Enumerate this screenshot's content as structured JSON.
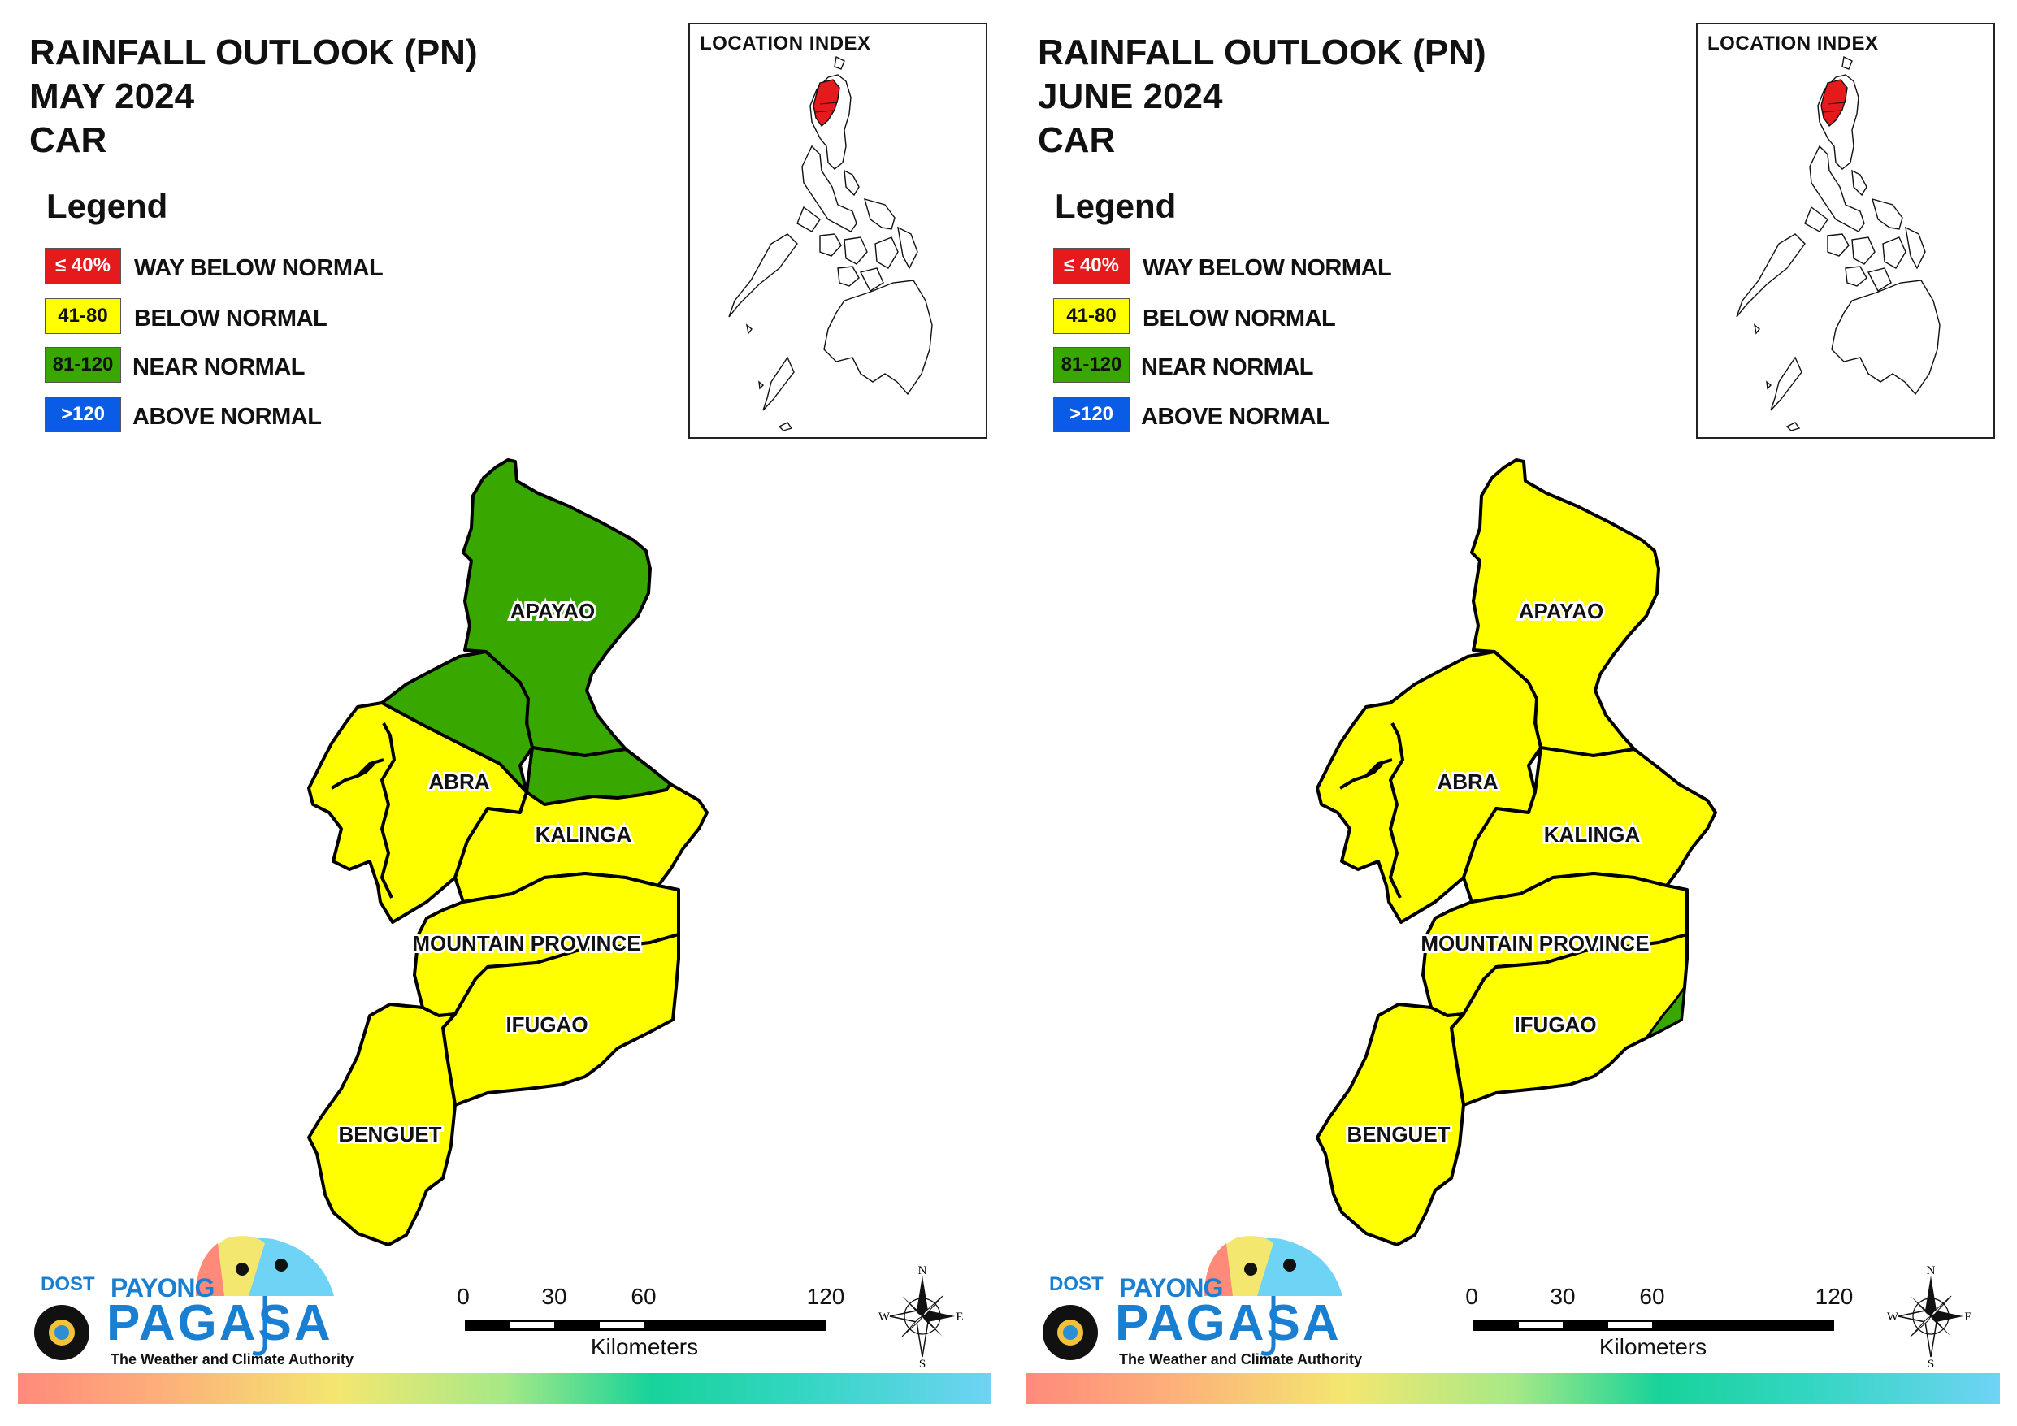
{
  "legend": {
    "title": "Legend",
    "items": [
      {
        "range": "≤ 40%",
        "label": "WAY BELOW NORMAL",
        "color": "#e41a1c",
        "text_color": "#ffffff"
      },
      {
        "range": "41-80",
        "label": "BELOW NORMAL",
        "color": "#ffff00",
        "text_color": "#111111"
      },
      {
        "range": "81-120",
        "label": "NEAR NORMAL",
        "color": "#38a800",
        "text_color": "#111111"
      },
      {
        "range": ">120",
        "label": "ABOVE NORMAL",
        "color": "#0a5ce6",
        "text_color": "#ffffff"
      }
    ]
  },
  "inset": {
    "label": "LOCATION INDEX",
    "highlight_color": "#e41a1c",
    "highlight_region": "CAR"
  },
  "provinces": [
    "APAYAO",
    "ABRA",
    "KALINGA",
    "MOUNTAIN PROVINCE",
    "IFUGAO",
    "BENGUET"
  ],
  "maps": [
    {
      "title_lines": [
        "RAINFALL OUTLOOK (PN)",
        "MAY 2024",
        "CAR"
      ],
      "province_category": {
        "APAYAO": "NEAR NORMAL",
        "ABRA": "BELOW NORMAL (north part NEAR NORMAL)",
        "KALINGA": "BELOW NORMAL (north part NEAR NORMAL)",
        "MOUNTAIN PROVINCE": "BELOW NORMAL",
        "IFUGAO": "BELOW NORMAL",
        "BENGUET": "BELOW NORMAL"
      }
    },
    {
      "title_lines": [
        "RAINFALL OUTLOOK (PN)",
        "JUNE 2024",
        "CAR"
      ],
      "province_category": {
        "APAYAO": "BELOW NORMAL",
        "ABRA": "BELOW NORMAL",
        "KALINGA": "BELOW NORMAL",
        "MOUNTAIN PROVINCE": "BELOW NORMAL",
        "IFUGAO": "BELOW NORMAL (east edge NEAR NORMAL)",
        "BENGUET": "BELOW NORMAL"
      }
    }
  ],
  "scale": {
    "ticks": [
      "0",
      "30",
      "60",
      "120"
    ],
    "units": "Kilometers"
  },
  "compass": {
    "n": "N",
    "e": "E",
    "s": "S",
    "w": "W"
  },
  "logo": {
    "dost": "DOST",
    "payong": "PAYONG",
    "pagasa": "PAGASA",
    "tagline": "The Weather and Climate Authority"
  }
}
